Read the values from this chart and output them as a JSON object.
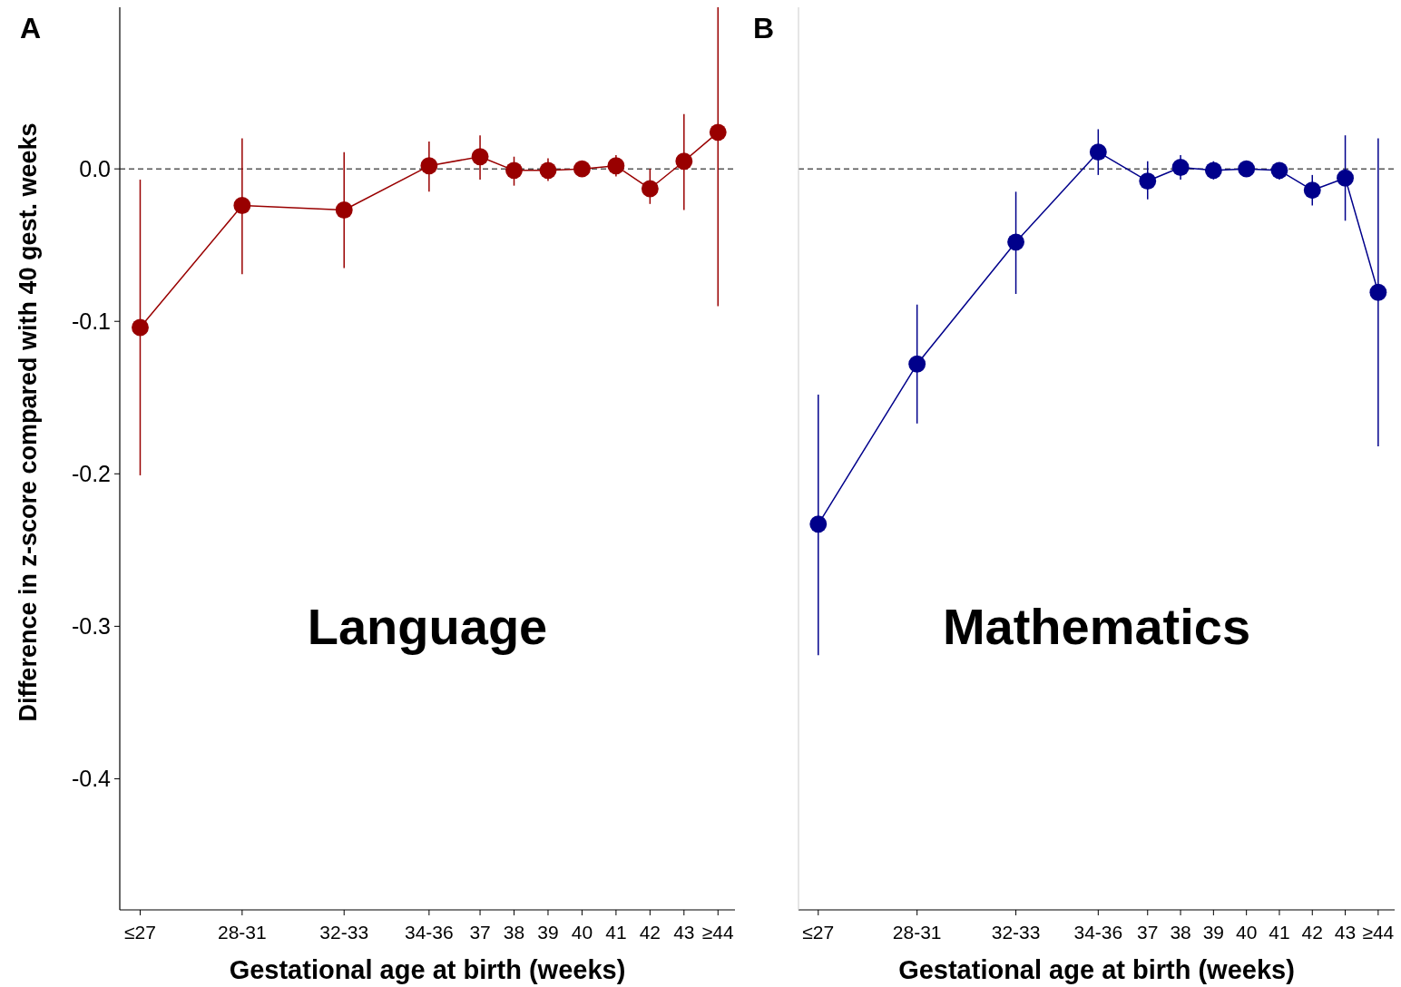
{
  "chart_data": [
    {
      "type": "line",
      "xlabel": "Gestational age at birth (weeks)",
      "ylabel": "Difference in z-score compared with 40 gest. weeks",
      "annotations": [
        "A",
        "Language"
      ],
      "x": [
        27,
        30,
        33,
        35.5,
        37,
        38,
        39,
        40,
        41,
        42,
        43,
        44
      ],
      "xlim": [
        26.4,
        44.5
      ],
      "xticks": [
        {
          "value": 27,
          "label": "≤27"
        },
        {
          "value": 30,
          "label": "28-31"
        },
        {
          "value": 33,
          "label": "32-33"
        },
        {
          "value": 35.5,
          "label": "34-36"
        },
        37,
        38,
        39,
        40,
        41,
        42,
        43,
        {
          "value": 44,
          "label": "≥44"
        }
      ],
      "ylim": [
        -0.486,
        0.106
      ],
      "yticks": [
        {
          "value": 0,
          "label": "0.0"
        },
        -0.1,
        -0.2,
        -0.3,
        -0.4
      ],
      "marker": "circle",
      "grid": false,
      "ref_lines": [
        {
          "axis": "y",
          "value": 0,
          "line_style": "dashed",
          "color": "#000000"
        }
      ],
      "series": [
        {
          "color": "#990000",
          "values": [
            -0.104,
            -0.024,
            -0.027,
            0.002,
            0.008,
            -0.001,
            -0.001,
            0,
            0.002,
            -0.013,
            0.005,
            0.024
          ],
          "errors": [
            [
              -0.201,
              -0.007
            ],
            [
              -0.069,
              0.02
            ],
            [
              -0.065,
              0.011
            ],
            [
              -0.015,
              0.018
            ],
            [
              -0.007,
              0.022
            ],
            [
              -0.011,
              0.008
            ],
            [
              -0.008,
              0.007
            ],
            null,
            [
              -0.005,
              0.009
            ],
            [
              -0.023,
              0
            ],
            [
              -0.027,
              0.036
            ],
            [
              -0.09,
              0.106
            ]
          ]
        }
      ]
    },
    {
      "type": "line",
      "xlabel": "Gestational age at birth (weeks)",
      "annotations": [
        "B",
        "Mathematics"
      ],
      "x": [
        27,
        30,
        33,
        35.5,
        37,
        38,
        39,
        40,
        41,
        42,
        43,
        44
      ],
      "xlim": [
        26.4,
        44.5
      ],
      "xticks": [
        {
          "value": 27,
          "label": "≤27"
        },
        {
          "value": 30,
          "label": "28-31"
        },
        {
          "value": 33,
          "label": "32-33"
        },
        {
          "value": 35.5,
          "label": "34-36"
        },
        37,
        38,
        39,
        40,
        41,
        42,
        43,
        {
          "value": 44,
          "label": "≥44"
        }
      ],
      "ylim": [
        -0.486,
        0.106
      ],
      "tick_labels": "x",
      "marker": "circle",
      "grid": false,
      "ref_lines": [
        {
          "axis": "y",
          "value": 0,
          "line_style": "dashed",
          "color": "#000000"
        }
      ],
      "series": [
        {
          "color": "#00008b",
          "values": [
            -0.233,
            -0.128,
            -0.048,
            0.011,
            -0.008,
            0.001,
            -0.001,
            0,
            -0.001,
            -0.014,
            -0.006,
            -0.081
          ],
          "errors": [
            [
              -0.319,
              -0.148
            ],
            [
              -0.167,
              -0.089
            ],
            [
              -0.082,
              -0.015
            ],
            [
              -0.004,
              0.026
            ],
            [
              -0.02,
              0.005
            ],
            [
              -0.007,
              0.009
            ],
            [
              -0.007,
              0.005
            ],
            null,
            [
              -0.007,
              0.004
            ],
            [
              -0.024,
              -0.004
            ],
            [
              -0.034,
              0.022
            ],
            [
              -0.182,
              0.02
            ]
          ]
        }
      ]
    }
  ]
}
